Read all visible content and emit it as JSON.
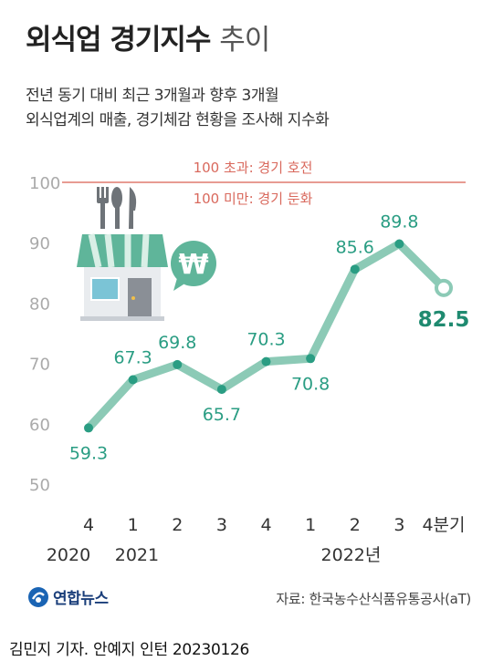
{
  "header": {
    "title_bold": "외식업 경기지수",
    "title_light": "추이",
    "subtitle_line1": "전년 동기 대비 최근 3개월과 향후 3개월",
    "subtitle_line2": "외식업계의 매출, 경기체감 현황을 조사해 지수화"
  },
  "reference": {
    "above_label": "100 초과: 경기 호전",
    "below_label": "100 미만: 경기 둔화"
  },
  "chart_data": {
    "type": "line",
    "title": "외식업 경기지수 추이",
    "categories": [
      "2020 4",
      "2021 1",
      "2021 2",
      "2021 3",
      "2021 4",
      "2022 1",
      "2022 2",
      "2022 3",
      "2022 4분기"
    ],
    "x_tick_labels": [
      "4",
      "1",
      "2",
      "3",
      "4",
      "1",
      "2",
      "3",
      "4분기"
    ],
    "year_labels": [
      "2020",
      "2021",
      "2022년"
    ],
    "series": [
      {
        "values": [
          59.3,
          67.3,
          69.8,
          65.7,
          70.3,
          70.8,
          85.6,
          89.8,
          82.5
        ]
      }
    ],
    "data_labels": [
      "59.3",
      "67.3",
      "69.8",
      "65.7",
      "70.3",
      "70.8",
      "85.6",
      "89.8",
      "82.5"
    ],
    "y_ticks": [
      "50",
      "60",
      "70",
      "80",
      "90",
      "100"
    ],
    "ylim": [
      50,
      100
    ],
    "reference_line": 100,
    "grid": false,
    "colors": {
      "line": "#8ccab6",
      "marker": "#2a9d83",
      "label": "#2a9d83",
      "last_label": "#1f8a70",
      "reference_line": "#e07a6e",
      "axis_text": "#aaaaaa"
    }
  },
  "footer": {
    "logo_text": "연합뉴스",
    "source": "자료: 한국농수산식품유통공사(aT)",
    "credit": "김민지 기자. 안예지 인턴  20230126"
  }
}
